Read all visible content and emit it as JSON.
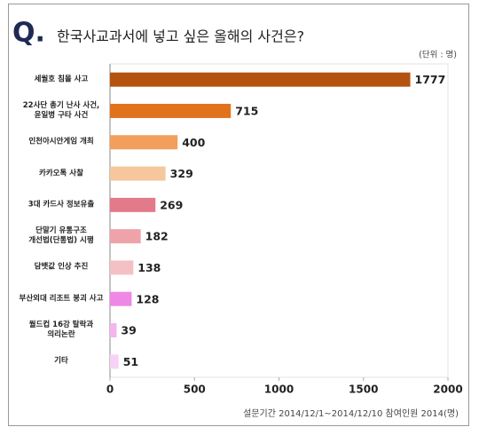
{
  "chart_data": {
    "type": "hbar",
    "logo": "Q.",
    "title": "한국사교과서에 넣고 싶은 올해의 사건은?",
    "unit_note": "(단위 : 명)",
    "footer": "설문기간 2014/12/1~2014/12/10  참여인원 2014(명)",
    "categories": [
      "세월호 침몰 사고",
      "22사단 총기 난사 사건,\n윤일병 구타 사건",
      "인천아시안게임 개최",
      "카카오톡 사찰",
      "3대 카드사 정보유출",
      "단말기 유통구조\n개선법(단통법) 시행",
      "담뱃값 인상 추진",
      "부산외대 리조트 붕괴 사고",
      "월드컵 16강 탈락과\n의리논란",
      "기타"
    ],
    "values": [
      1777,
      715,
      400,
      329,
      269,
      182,
      138,
      128,
      39,
      51
    ],
    "colors": [
      "#b4530f",
      "#e2711d",
      "#f29e5c",
      "#f6c79c",
      "#e27a89",
      "#f0a2aa",
      "#f4c0c4",
      "#ee88e6",
      "#f4b4ee",
      "#f8d2f6"
    ],
    "xlim": [
      0,
      2000
    ],
    "xticks": [
      0,
      500,
      1000,
      1500,
      2000
    ]
  }
}
